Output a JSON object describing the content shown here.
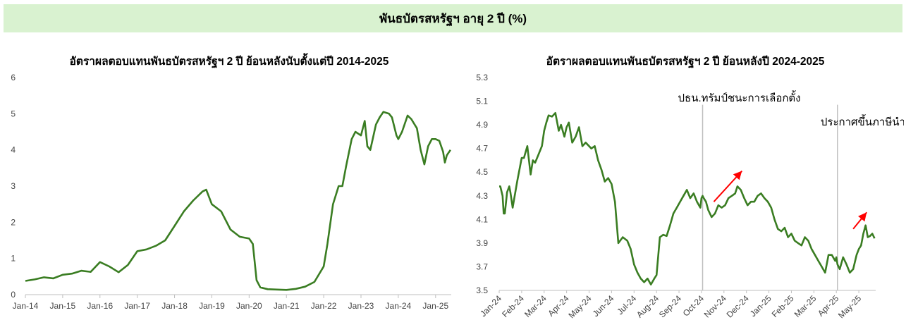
{
  "header": {
    "title": "พันธบัตรสหรัฐฯ อายุ 2 ปี (%)"
  },
  "colors": {
    "line": "#3a7d22",
    "banner_bg": "#d9f2d0",
    "arrow": "#ff0000",
    "event_line": "#bfbfbf",
    "axis": "#bfbfbf"
  },
  "chart_data": [
    {
      "type": "line",
      "title": "อัตราผลตอบแทนพันธบัตรสหรัฐฯ 2 ปี ย้อนหลังนับตั้งแต่ปี 2014-2025",
      "xlabel": "",
      "ylabel": "",
      "ylim": [
        0,
        6
      ],
      "yticks": [
        "0",
        "1",
        "2",
        "3",
        "4",
        "5",
        "6"
      ],
      "xticks": [
        "Jan-14",
        "Jan-15",
        "Jan-16",
        "Jan-17",
        "Jan-18",
        "Jan-19",
        "Jan-20",
        "Jan-21",
        "Jan-22",
        "Jan-23",
        "Jan-24",
        "Jan-25"
      ],
      "x_range": [
        "Jan-14",
        "Jun-25"
      ],
      "grid": false,
      "series": [
        {
          "x": [
            2014.0,
            2014.25,
            2014.5,
            2014.75,
            2015.0,
            2015.25,
            2015.5,
            2015.75,
            2016.0,
            2016.25,
            2016.5,
            2016.75,
            2017.0,
            2017.25,
            2017.5,
            2017.75,
            2018.0,
            2018.25,
            2018.5,
            2018.75,
            2018.85,
            2019.0,
            2019.25,
            2019.5,
            2019.75,
            2020.0,
            2020.1,
            2020.2,
            2020.3,
            2020.5,
            2020.75,
            2021.0,
            2021.25,
            2021.5,
            2021.75,
            2022.0,
            2022.1,
            2022.25,
            2022.4,
            2022.5,
            2022.6,
            2022.75,
            2022.85,
            2023.0,
            2023.1,
            2023.17,
            2023.25,
            2023.4,
            2023.5,
            2023.6,
            2023.75,
            2023.83,
            2023.95,
            2024.0,
            2024.1,
            2024.25,
            2024.35,
            2024.5,
            2024.6,
            2024.7,
            2024.8,
            2024.9,
            2025.0,
            2025.1,
            2025.2,
            2025.25,
            2025.3,
            2025.4
          ],
          "y": [
            0.38,
            0.42,
            0.48,
            0.45,
            0.55,
            0.58,
            0.66,
            0.63,
            0.9,
            0.78,
            0.62,
            0.82,
            1.2,
            1.25,
            1.35,
            1.5,
            1.9,
            2.3,
            2.6,
            2.85,
            2.9,
            2.5,
            2.3,
            1.8,
            1.6,
            1.55,
            1.4,
            0.4,
            0.2,
            0.15,
            0.14,
            0.13,
            0.16,
            0.22,
            0.35,
            0.78,
            1.4,
            2.5,
            3.0,
            3.0,
            3.55,
            4.3,
            4.5,
            4.4,
            4.8,
            4.1,
            4.0,
            4.7,
            4.9,
            5.05,
            5.0,
            4.9,
            4.4,
            4.3,
            4.5,
            4.95,
            4.85,
            4.6,
            4.0,
            3.6,
            4.1,
            4.3,
            4.3,
            4.25,
            3.95,
            3.65,
            3.85,
            4.0
          ]
        }
      ]
    },
    {
      "type": "line",
      "title": "อัตราผลตอบแทนพันธบัตรสหรัฐฯ 2 ปี ย้อนหลังปี 2024-2025",
      "xlabel": "",
      "ylabel": "",
      "ylim": [
        3.5,
        5.3
      ],
      "yticks": [
        "3.5",
        "3.7",
        "3.9",
        "4.1",
        "4.3",
        "4.5",
        "4.7",
        "4.9",
        "5.1",
        "5.3"
      ],
      "xticks": [
        "Jan-24",
        "Feb-24",
        "Mar-24",
        "Apr-24",
        "May-24",
        "Jun-24",
        "Jul-24",
        "Aug-24",
        "Sep-24",
        "Oct-24",
        "Nov-24",
        "Dec-24",
        "Jan-25",
        "Feb-25",
        "Mar-25",
        "Apr-25",
        "May-25"
      ],
      "grid": false,
      "annotations": [
        {
          "text": "ปธน.ทรัมป์ชนะการเลือกตั้ง",
          "x_month": 9.05
        },
        {
          "text": "ประกาศขึ้นภาษีนำเข้า",
          "x_month": 15.05
        }
      ],
      "series": [
        {
          "x": [
            0,
            0.05,
            0.15,
            0.2,
            0.25,
            0.35,
            0.45,
            0.5,
            0.6,
            0.8,
            1.0,
            1.1,
            1.25,
            1.4,
            1.5,
            1.6,
            1.75,
            1.9,
            2.0,
            2.1,
            2.2,
            2.35,
            2.5,
            2.65,
            2.75,
            2.9,
            3.0,
            3.1,
            3.25,
            3.4,
            3.55,
            3.7,
            3.85,
            4.0,
            4.1,
            4.25,
            4.4,
            4.55,
            4.7,
            4.85,
            5.0,
            5.15,
            5.3,
            5.5,
            5.7,
            5.85,
            6.0,
            6.15,
            6.3,
            6.45,
            6.6,
            6.75,
            6.9,
            7.0,
            7.07,
            7.15,
            7.3,
            7.45,
            7.6,
            7.75,
            7.9,
            8.05,
            8.2,
            8.35,
            8.5,
            8.65,
            8.8,
            8.95,
            9.0,
            9.05,
            9.1,
            9.2,
            9.3,
            9.45,
            9.6,
            9.75,
            9.9,
            10.05,
            10.2,
            10.35,
            10.5,
            10.6,
            10.75,
            10.9,
            11.05,
            11.2,
            11.35,
            11.5,
            11.65,
            11.8,
            11.95,
            12.1,
            12.25,
            12.4,
            12.55,
            12.7,
            12.85,
            13.0,
            13.15,
            13.3,
            13.45,
            13.6,
            13.75,
            13.9,
            14.05,
            14.2,
            14.35,
            14.5,
            14.65,
            14.8,
            14.95,
            15.0,
            15.05,
            15.15,
            15.3,
            15.45,
            15.6,
            15.75,
            15.9,
            16.0,
            16.1,
            16.2,
            16.3,
            16.4,
            16.5,
            16.6,
            16.7
          ],
          "y": [
            4.38,
            4.38,
            4.3,
            4.15,
            4.15,
            4.33,
            4.38,
            4.33,
            4.2,
            4.42,
            4.62,
            4.62,
            4.72,
            4.48,
            4.6,
            4.58,
            4.65,
            4.72,
            4.85,
            4.92,
            4.98,
            4.97,
            5.0,
            4.85,
            4.9,
            4.8,
            4.88,
            4.92,
            4.75,
            4.8,
            4.88,
            4.72,
            4.75,
            4.72,
            4.7,
            4.72,
            4.6,
            4.52,
            4.42,
            4.45,
            4.4,
            4.25,
            3.9,
            3.95,
            3.92,
            3.85,
            3.72,
            3.65,
            3.6,
            3.57,
            3.6,
            3.55,
            3.6,
            3.63,
            3.78,
            3.95,
            3.97,
            3.96,
            4.05,
            4.15,
            4.2,
            4.25,
            4.3,
            4.35,
            4.28,
            4.32,
            4.25,
            4.2,
            4.28,
            4.3,
            4.28,
            4.25,
            4.18,
            4.12,
            4.15,
            4.22,
            4.2,
            4.22,
            4.28,
            4.3,
            4.32,
            4.38,
            4.35,
            4.28,
            4.22,
            4.25,
            4.25,
            4.3,
            4.32,
            4.28,
            4.25,
            4.2,
            4.1,
            4.02,
            4.0,
            4.03,
            3.95,
            3.98,
            3.92,
            3.9,
            3.88,
            3.95,
            3.92,
            3.85,
            3.8,
            3.75,
            3.7,
            3.65,
            3.8,
            3.8,
            3.75,
            3.78,
            3.72,
            3.68,
            3.78,
            3.72,
            3.65,
            3.68,
            3.8,
            3.85,
            3.88,
            3.98,
            4.05,
            3.95,
            3.96,
            3.98,
            3.94
          ]
        }
      ]
    }
  ]
}
